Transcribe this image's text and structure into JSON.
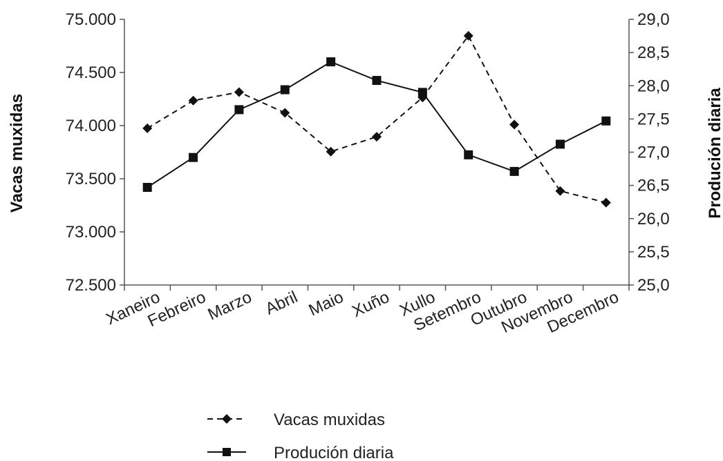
{
  "chart_data": {
    "type": "line",
    "title": "",
    "categories": [
      "Xaneiro",
      "Febreiro",
      "Marzo",
      "Abril",
      "Maio",
      "Xuño",
      "Xullo",
      "Setembro",
      "Outubro",
      "Novembro",
      "Decembro"
    ],
    "y_left": {
      "label": "Vacas muxidas",
      "ylim": [
        72500,
        75000
      ],
      "ticks": [
        "72.500",
        "73.000",
        "73.500",
        "74.000",
        "74.500",
        "75.000"
      ]
    },
    "y_right": {
      "label": "Produción diaria",
      "ylim": [
        25.0,
        29.0
      ],
      "ticks": [
        "25,0",
        "25,5",
        "26,0",
        "26,5",
        "27,0",
        "27,5",
        "28,0",
        "28,5",
        "29,0"
      ]
    },
    "series": [
      {
        "name": "Vacas muxidas",
        "axis": "left",
        "line_style": "dashed",
        "marker": "diamond",
        "values": [
          73975,
          74235,
          74315,
          74120,
          73755,
          73895,
          74265,
          74845,
          74010,
          73385,
          73275
        ]
      },
      {
        "name": "Produción diaria",
        "axis": "right",
        "line_style": "solid",
        "marker": "square",
        "values": [
          26.47,
          26.92,
          27.64,
          27.94,
          28.36,
          28.08,
          27.9,
          26.96,
          26.71,
          27.12,
          27.47
        ]
      }
    ],
    "grid": false,
    "legend_position": "bottom-center"
  }
}
